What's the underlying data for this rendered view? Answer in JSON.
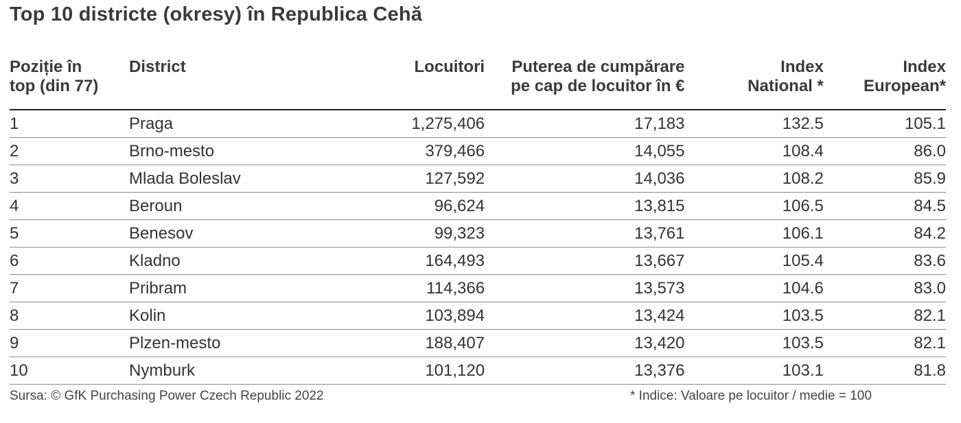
{
  "chart_data": {
    "type": "table",
    "title": "Top 10 districte (okresy)  în Republica  Cehă",
    "columns": [
      "Poziție în\ntop (din 77)",
      "District",
      "Locuitori",
      "Puterea de cumpărare\npe cap de locuitor în €",
      "Index\nNational *",
      "Index\nEuropean*"
    ],
    "rows": [
      [
        "1",
        "Praga",
        "1,275,406",
        "17,183",
        "132.5",
        "105.1"
      ],
      [
        "2",
        "Brno-mesto",
        "379,466",
        "14,055",
        "108.4",
        "86.0"
      ],
      [
        "3",
        "Mlada Boleslav",
        "127,592",
        "14,036",
        "108.2",
        "85.9"
      ],
      [
        "4",
        "Beroun",
        "96,624",
        "13,815",
        "106.5",
        "84.5"
      ],
      [
        "5",
        "Benesov",
        "99,323",
        "13,761",
        "106.1",
        "84.2"
      ],
      [
        "6",
        "Kladno",
        "164,493",
        "13,667",
        "105.4",
        "83.6"
      ],
      [
        "7",
        "Pribram",
        "114,366",
        "13,573",
        "104.6",
        "83.0"
      ],
      [
        "8",
        "Kolin",
        "103,894",
        "13,424",
        "103.5",
        "82.1"
      ],
      [
        "9",
        "Plzen-mesto",
        "188,407",
        "13,420",
        "103.5",
        "82.1"
      ],
      [
        "10",
        "Nymburk",
        "101,120",
        "13,376",
        "103.1",
        "81.8"
      ]
    ],
    "source": "Sursa: © GfK Purchasing Power Czech Republic 2022",
    "footnote": "* Indice: Valoare pe locuitor / medie = 100"
  }
}
